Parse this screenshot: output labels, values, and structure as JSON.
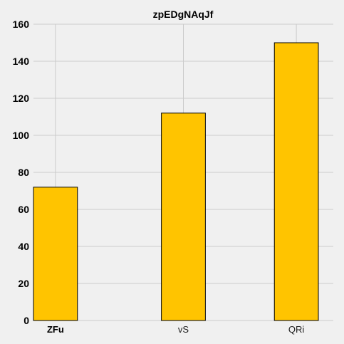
{
  "chart_data": {
    "type": "bar",
    "title": "zpEDgNAqJf",
    "xlabel": "",
    "ylabel": "",
    "categories": [
      "ZFu",
      "vS",
      "QRi"
    ],
    "values": [
      72,
      112,
      150
    ],
    "ylim": [
      0,
      160
    ],
    "yticks": [
      0,
      20,
      40,
      60,
      80,
      100,
      120,
      140,
      160
    ],
    "grid": true,
    "legend": "none",
    "colors": {
      "bar": "#ffc400",
      "background": "#f0f0f0",
      "grid": "#cbcbcb"
    }
  }
}
